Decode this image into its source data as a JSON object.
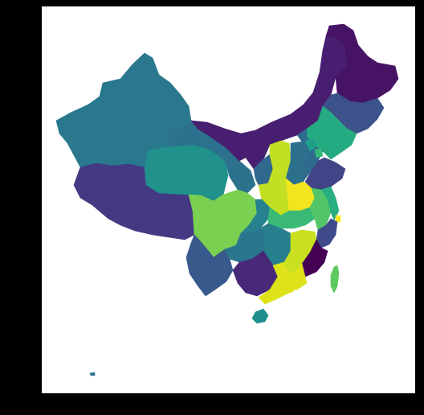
{
  "figure": {
    "background": "#000000",
    "axes_background": "#ffffff"
  },
  "map": {
    "colormap": "viridis",
    "regions": [
      {
        "id": "xinjiang",
        "color": "#2a788e"
      },
      {
        "id": "xizang",
        "color": "#443983"
      },
      {
        "id": "qinghai",
        "color": "#21918c"
      },
      {
        "id": "gansu",
        "color": "#2c728e"
      },
      {
        "id": "neimenggu",
        "color": "#481f70"
      },
      {
        "id": "heilongjiang",
        "color": "#471365"
      },
      {
        "id": "jilin",
        "color": "#3b528b"
      },
      {
        "id": "liaoning",
        "color": "#25ab82"
      },
      {
        "id": "ningxia",
        "color": "#31688e"
      },
      {
        "id": "shaanxi",
        "color": "#c2df23"
      },
      {
        "id": "shanxi",
        "color": "#2d708e"
      },
      {
        "id": "hebei",
        "color": "#2f6b8e"
      },
      {
        "id": "beijing",
        "color": "#1f9e89"
      },
      {
        "id": "tianjin",
        "color": "#35b779"
      },
      {
        "id": "shandong",
        "color": "#414487"
      },
      {
        "id": "henan",
        "color": "#f2e51d"
      },
      {
        "id": "sichuan",
        "color": "#7ad151"
      },
      {
        "id": "chongqing",
        "color": "#26828e"
      },
      {
        "id": "hubei",
        "color": "#3aba76"
      },
      {
        "id": "anhui",
        "color": "#52c569"
      },
      {
        "id": "jiangsu",
        "color": "#28ae80"
      },
      {
        "id": "shanghai",
        "color": "#fde725"
      },
      {
        "id": "zhejiang",
        "color": "#3e4a89"
      },
      {
        "id": "yunnan",
        "color": "#38598c"
      },
      {
        "id": "guizhou",
        "color": "#2a768e"
      },
      {
        "id": "hunan",
        "color": "#277f8e"
      },
      {
        "id": "jiangxi",
        "color": "#c8e020"
      },
      {
        "id": "fujian",
        "color": "#440154"
      },
      {
        "id": "guangxi",
        "color": "#482878"
      },
      {
        "id": "guangdong",
        "color": "#dde318"
      },
      {
        "id": "hainan",
        "color": "#218f8d"
      },
      {
        "id": "taiwan",
        "color": "#5ec962"
      },
      {
        "id": "hongkong",
        "color": "#ffffff"
      },
      {
        "id": "nanhai-islet",
        "color": "#2c728e"
      }
    ]
  }
}
